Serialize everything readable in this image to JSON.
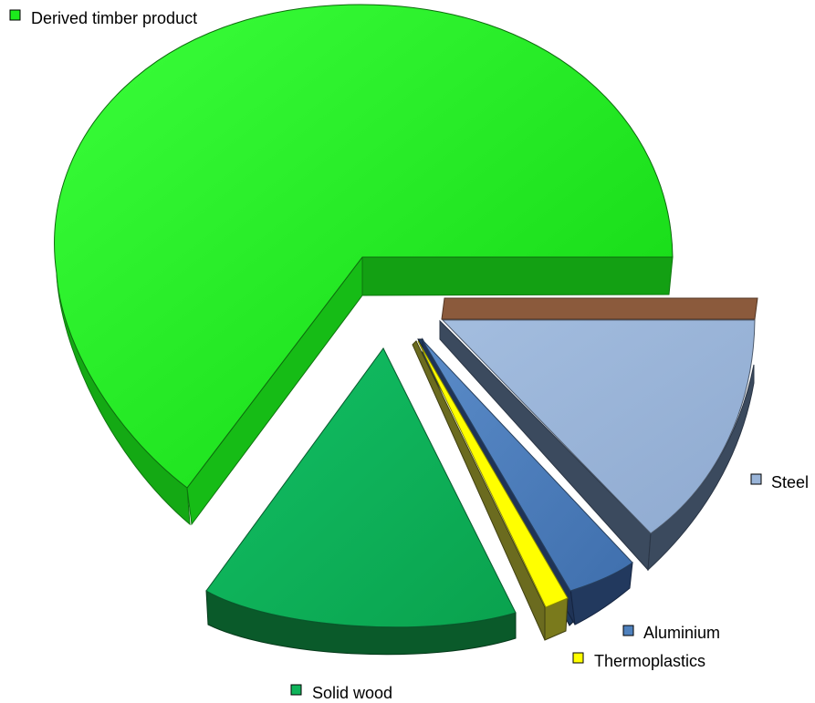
{
  "chart_data": {
    "type": "pie",
    "style": "3d-exploded",
    "title": "",
    "categories": [
      "Derived timber product",
      "Steel",
      "Aluminium",
      "Thermoplastics",
      "Solid wood"
    ],
    "values": [
      62,
      16,
      4.5,
      2,
      15.5
    ],
    "unlabeled_slices": [
      {
        "color": "#8B5A3C",
        "value": 0.5
      },
      {
        "color": "#1F3A5F",
        "value": 0.3
      },
      {
        "color": "#6B6B1F",
        "value": 0.2
      }
    ],
    "colors": {
      "Derived timber product": "#1CEB1C",
      "Steel": "#99B4D8",
      "Aluminium": "#4F81BD",
      "Thermoplastics": "#FFFF00",
      "Solid wood": "#0FB35A"
    },
    "legend_placement": "labels-next-to-slices",
    "grid": false
  }
}
